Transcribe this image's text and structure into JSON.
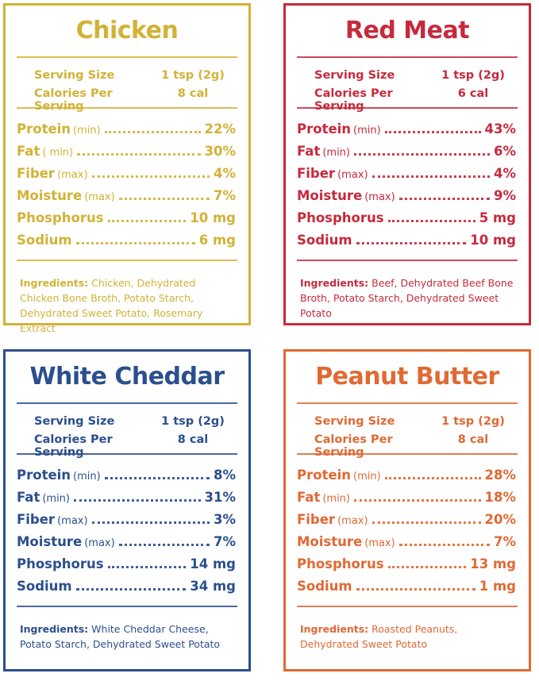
{
  "panels": [
    {
      "title": "Chicken",
      "color": "#d2b236",
      "serving_label": "Serving Size",
      "serving_value": "1 tsp (2g)",
      "calories_label": "Calories Per Serving",
      "calories_value": "8 cal",
      "nutrients": [
        {
          "name": "Protein",
          "qualifier": "(min)",
          "value": "22%"
        },
        {
          "name": "Fat",
          "qualifier": "( min)",
          "value": "30%"
        },
        {
          "name": "Fiber",
          "qualifier": "(max)",
          "value": "4%"
        },
        {
          "name": "Moisture",
          "qualifier": "(max)",
          "value": "7%"
        },
        {
          "name": "Phosphorus",
          "value": "10 mg"
        },
        {
          "name": "Sodium",
          "value": "6 mg"
        }
      ],
      "ingredients_label": "Ingredients:",
      "ingredients_text": "Chicken, Dehydrated Chicken Bone Broth, Potato Starch, Dehydrated Sweet Potato, Rosemary Extract"
    },
    {
      "title": "Red Meat",
      "color": "#c62a3c",
      "serving_label": "Serving Size",
      "serving_value": "1 tsp (2g)",
      "calories_label": "Calories Per Serving",
      "calories_value": "6 cal",
      "nutrients": [
        {
          "name": "Protein",
          "qualifier": "(min)",
          "value": "43%"
        },
        {
          "name": "Fat",
          "qualifier": "(min)",
          "value": "6%"
        },
        {
          "name": "Fiber",
          "qualifier": "(max)",
          "value": "4%"
        },
        {
          "name": "Moisture",
          "qualifier": "(max)",
          "value": "9%"
        },
        {
          "name": "Phosphorus",
          "value": "5 mg"
        },
        {
          "name": "Sodium",
          "value": "10 mg"
        }
      ],
      "ingredients_label": "Ingredients:",
      "ingredients_text": "Beef, Dehydrated Beef Bone Broth, Potato Starch, Dehydrated Sweet Potato"
    },
    {
      "title": "White Cheddar",
      "color": "#2b4f8e",
      "serving_label": "Serving Size",
      "serving_value": "1 tsp (2g)",
      "calories_label": "Calories Per Serving",
      "calories_value": "8 cal",
      "nutrients": [
        {
          "name": "Protein",
          "qualifier": "(min)",
          "value": "8%"
        },
        {
          "name": "Fat",
          "qualifier": "(min)",
          "value": "31%"
        },
        {
          "name": "Fiber",
          "qualifier": "(max)",
          "value": "3%"
        },
        {
          "name": "Moisture",
          "qualifier": "(max)",
          "value": "7%"
        },
        {
          "name": "Phosphorus",
          "value": "14 mg"
        },
        {
          "name": "Sodium",
          "value": "34 mg"
        }
      ],
      "ingredients_label": "Ingredients:",
      "ingredients_text": "White Cheddar Cheese, Potato Starch, Dehydrated Sweet Potato"
    },
    {
      "title": "Peanut Butter",
      "color": "#e06934",
      "serving_label": "Serving Size",
      "serving_value": "1 tsp (2g)",
      "calories_label": "Calories Per Serving",
      "calories_value": "8 cal",
      "nutrients": [
        {
          "name": "Protein",
          "qualifier": "(min)",
          "value": "28%"
        },
        {
          "name": "Fat",
          "qualifier": "(min)",
          "value": "18%"
        },
        {
          "name": "Fiber",
          "qualifier": "(max)",
          "value": "20%"
        },
        {
          "name": "Moisture",
          "qualifier": "(max)",
          "value": "7%"
        },
        {
          "name": "Phosphorus",
          "value": "13 mg"
        },
        {
          "name": "Sodium",
          "value": "1 mg"
        }
      ],
      "ingredients_label": "Ingredients:",
      "ingredients_text": "Roasted Peanuts, Dehydrated Sweet Potato"
    }
  ]
}
